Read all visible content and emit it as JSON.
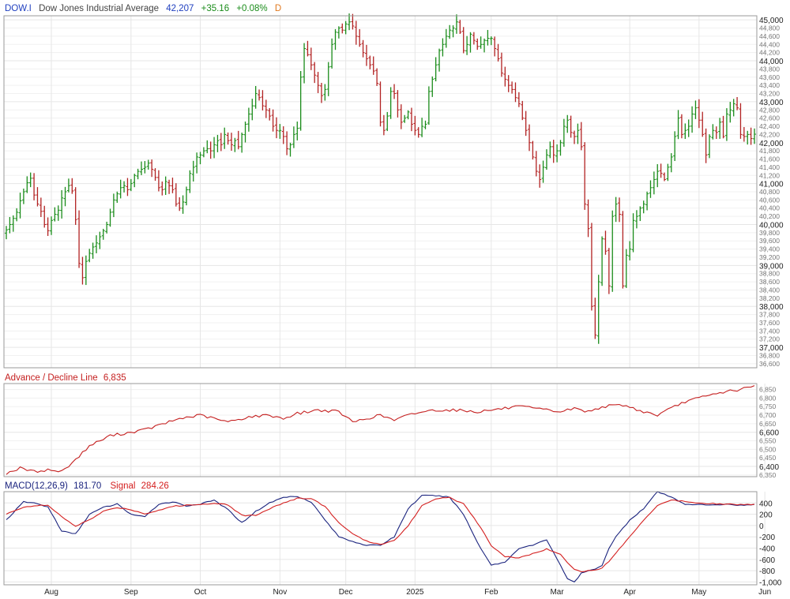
{
  "header": {
    "symbol": "DOW.I",
    "name": "Dow Jones Industrial Average",
    "last": "42,207",
    "change": "+35.16",
    "change_pct": "+0.08%",
    "period": "D"
  },
  "colors": {
    "up": "#1a8c1a",
    "down": "#b22222",
    "symbol": "#1f3fbf",
    "ad_line": "#c41e1e",
    "macd": "#1a237e",
    "signal": "#d42020",
    "grid": "#e6e6e6"
  },
  "chart_data": [
    {
      "type": "ohlc",
      "title": "Dow Jones Industrial Average",
      "x_labels": [
        "Aug",
        "Sep",
        "Oct",
        "Nov",
        "Dec",
        "2025",
        "Feb",
        "Mar",
        "Apr",
        "May",
        "Jun"
      ],
      "major_ticks": [
        "45,000",
        "44,000",
        "43,000",
        "42,000",
        "41,000",
        "40,000",
        "39,000",
        "38,000",
        "37,000"
      ],
      "minor_ticks": [
        "44,800",
        "44,600",
        "44,400",
        "44,200",
        "43,800",
        "43,600",
        "43,400",
        "43,200",
        "42,800",
        "42,600",
        "42,400",
        "42,200",
        "41,800",
        "41,600",
        "41,400",
        "41,200",
        "40,800",
        "40,600",
        "40,400",
        "40,200",
        "39,800",
        "39,600",
        "39,400",
        "39,200",
        "38,800",
        "38,600",
        "38,400",
        "38,200",
        "37,800",
        "37,600",
        "37,400",
        "37,200",
        "36,800",
        "36,600"
      ],
      "ylim": [
        36500,
        45100
      ],
      "month_day_index": [
        0,
        13,
        36,
        56,
        79,
        98,
        118,
        140,
        159,
        180,
        200,
        219,
        232
      ],
      "close": [
        39870,
        40000,
        40150,
        40300,
        40580,
        40800,
        41020,
        41130,
        40720,
        40500,
        40320,
        40000,
        39850,
        40100,
        40250,
        40350,
        40650,
        40800,
        40950,
        40820,
        40120,
        39050,
        38700,
        39100,
        39300,
        39450,
        39550,
        39700,
        39850,
        40000,
        40300,
        40600,
        40750,
        40900,
        40950,
        40850,
        41000,
        41200,
        41300,
        41350,
        41400,
        41500,
        41350,
        41150,
        40900,
        40850,
        41050,
        40950,
        40850,
        40500,
        40400,
        40550,
        40850,
        41250,
        41400,
        41650,
        41700,
        41800,
        41850,
        41800,
        41950,
        42050,
        41950,
        42200,
        42050,
        41950,
        42050,
        41900,
        42200,
        42450,
        42700,
        42900,
        43200,
        43100,
        42900,
        42800,
        42650,
        42400,
        42300,
        42300,
        42150,
        41850,
        41950,
        42200,
        42350,
        43600,
        44300,
        44150,
        43900,
        43650,
        43400,
        43150,
        43300,
        43850,
        44400,
        44700,
        44800,
        44750,
        44900,
        44950,
        44850,
        44600,
        44400,
        44200,
        44050,
        43900,
        43750,
        43450,
        42500,
        42300,
        42650,
        43250,
        43200,
        42800,
        42500,
        42600,
        42750,
        42450,
        42300,
        42200,
        42400,
        42450,
        43250,
        43550,
        43900,
        44250,
        44400,
        44600,
        44750,
        44800,
        44950,
        44700,
        44250,
        44400,
        44650,
        44500,
        44350,
        44400,
        44500,
        44550,
        44550,
        44300,
        44050,
        43700,
        43550,
        43400,
        43300,
        43100,
        42950,
        42600,
        42300,
        42000,
        41650,
        41300,
        41100,
        41400,
        41700,
        41900,
        41700,
        41800,
        42000,
        42400,
        42550,
        42250,
        42150,
        42300,
        41900,
        40500,
        39900,
        38000,
        37300,
        38600,
        39650,
        39350,
        38500,
        40200,
        40500,
        40250,
        38500,
        39250,
        39400,
        40100,
        40200,
        40400,
        40500,
        40750,
        40900,
        41100,
        41300,
        41250,
        41100,
        41400,
        41650,
        42150,
        42600,
        42200,
        42300,
        42400,
        42700,
        42850,
        42550,
        42200,
        41700,
        42150,
        42300,
        42250,
        42500,
        42150,
        42700,
        42800,
        42950,
        42850,
        42200,
        42150,
        42200,
        42100,
        42207
      ],
      "last": 42207
    },
    {
      "type": "line",
      "title": "Advance / Decline Line",
      "last_label": "6,835",
      "series": [
        {
          "name": "Advance / Decline Line"
        }
      ],
      "major_ticks": [
        "6,600",
        "6,400"
      ],
      "minor_ticks": [
        "6,850",
        "6,800",
        "6,750",
        "6,700",
        "6,650",
        "6,550",
        "6,500",
        "6,450",
        "6,350"
      ],
      "ylim": [
        6340,
        6885
      ],
      "anchors_day": [
        0,
        4,
        8,
        12,
        16,
        20,
        24,
        30,
        36,
        40,
        44,
        50,
        56,
        60,
        64,
        70,
        76,
        80,
        84,
        90,
        96,
        100,
        104,
        108,
        112,
        116,
        120,
        124,
        130,
        136,
        140,
        144,
        148,
        152,
        156,
        160,
        164,
        168,
        172,
        178,
        184,
        188,
        192,
        196,
        200,
        204,
        208,
        212,
        216,
        220,
        224,
        228,
        232
      ],
      "anchors_value": [
        6360,
        6390,
        6370,
        6380,
        6370,
        6440,
        6520,
        6580,
        6600,
        6615,
        6640,
        6680,
        6700,
        6680,
        6660,
        6690,
        6700,
        6680,
        6710,
        6730,
        6720,
        6660,
        6680,
        6700,
        6670,
        6700,
        6720,
        6730,
        6730,
        6720,
        6730,
        6740,
        6750,
        6740,
        6730,
        6720,
        6740,
        6720,
        6750,
        6760,
        6720,
        6700,
        6740,
        6780,
        6800,
        6820,
        6840,
        6850,
        6870,
        6860,
        6850,
        6845,
        6835
      ]
    },
    {
      "type": "line",
      "title": "MACD(12,26,9)",
      "macd_label": "181.70",
      "signal_label": "284.26",
      "series": [
        {
          "name": "MACD(12,26,9)",
          "anchors_day": [
            0,
            5,
            8,
            12,
            16,
            20,
            24,
            28,
            32,
            36,
            40,
            44,
            48,
            52,
            56,
            60,
            64,
            68,
            72,
            76,
            80,
            84,
            88,
            92,
            96,
            100,
            104,
            108,
            112,
            116,
            120,
            124,
            128,
            132,
            136,
            140,
            144,
            148,
            152,
            156,
            160,
            162,
            164,
            166,
            168,
            170,
            172,
            174,
            176,
            180,
            184,
            188,
            192,
            196,
            200,
            204,
            208,
            212,
            216,
            220,
            224,
            228,
            232
          ],
          "anchors_value": [
            100,
            420,
            400,
            330,
            -100,
            -150,
            200,
            320,
            380,
            200,
            150,
            380,
            420,
            350,
            380,
            450,
            280,
            50,
            250,
            400,
            500,
            520,
            420,
            100,
            -200,
            -280,
            -350,
            -350,
            -200,
            300,
            530,
            530,
            500,
            200,
            -300,
            -700,
            -650,
            -400,
            -350,
            -250,
            -700,
            -950,
            -1000,
            -850,
            -800,
            -780,
            -700,
            -400,
            -200,
            100,
            300,
            600,
            500,
            380,
            370,
            360,
            380,
            360,
            370,
            380,
            330,
            250,
            180
          ]
        },
        {
          "name": "Signal",
          "anchors_day": [
            0,
            5,
            8,
            12,
            16,
            20,
            24,
            28,
            32,
            36,
            40,
            44,
            48,
            52,
            56,
            60,
            64,
            68,
            72,
            76,
            80,
            84,
            88,
            92,
            96,
            100,
            104,
            108,
            112,
            116,
            120,
            124,
            128,
            132,
            136,
            140,
            144,
            148,
            152,
            156,
            160,
            162,
            164,
            166,
            168,
            170,
            172,
            174,
            176,
            180,
            184,
            188,
            192,
            196,
            200,
            204,
            208,
            212,
            216,
            220,
            224,
            228,
            232
          ],
          "anchors_value": [
            200,
            330,
            350,
            360,
            150,
            -10,
            100,
            250,
            320,
            280,
            210,
            270,
            340,
            360,
            370,
            400,
            370,
            180,
            180,
            300,
            400,
            480,
            480,
            340,
            50,
            -150,
            -280,
            -330,
            -270,
            0,
            350,
            480,
            500,
            380,
            50,
            -350,
            -550,
            -570,
            -500,
            -420,
            -500,
            -650,
            -780,
            -820,
            -800,
            -780,
            -760,
            -630,
            -480,
            -200,
            100,
            360,
            450,
            430,
            400,
            390,
            380,
            370,
            370,
            370,
            360,
            320,
            284
          ]
        }
      ],
      "major_ticks": [
        "400",
        "200",
        "0",
        "-200",
        "-400",
        "-600",
        "-800",
        "-1,000"
      ],
      "tick_values": [
        400,
        200,
        0,
        -200,
        -400,
        -600,
        -800,
        -1000
      ],
      "ylim": [
        -1050,
        600
      ]
    }
  ]
}
